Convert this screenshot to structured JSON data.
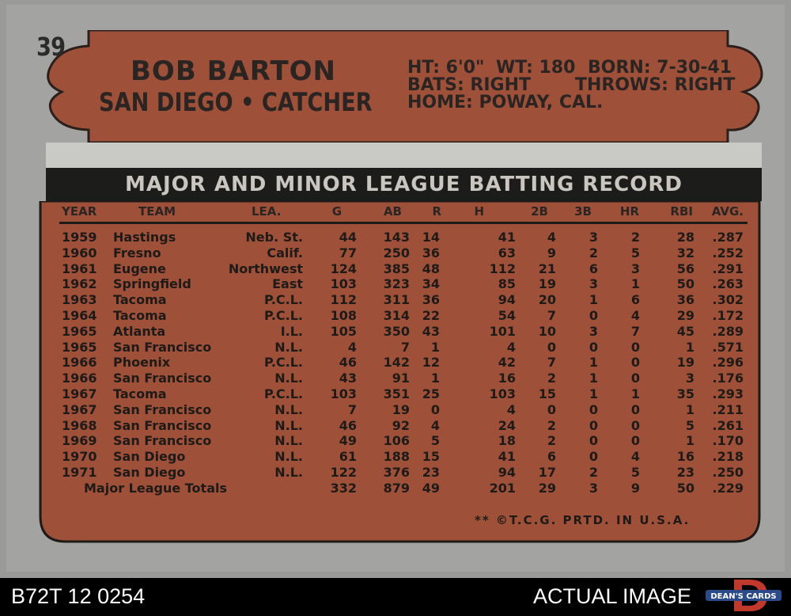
{
  "card": {
    "number": "39",
    "name": "BOB BARTON",
    "team_line": "SAN DIEGO • CATCHER",
    "vitals": {
      "ht": "HT: 6'0\"",
      "wt": "WT: 180",
      "born": "BORN: 7-30-41",
      "bats": "BATS: RIGHT",
      "throws": "THROWS: RIGHT",
      "home": "HOME: POWAY, CAL."
    },
    "record_title": "MAJOR AND MINOR LEAGUE BATTING RECORD",
    "columns": [
      "YEAR",
      "TEAM",
      "LEA.",
      "G",
      "AB",
      "R",
      "H",
      "2B",
      "3B",
      "HR",
      "RBI",
      "AVG."
    ],
    "rows": [
      [
        "1959",
        "Hastings",
        "Neb. St.",
        "44",
        "143",
        "14",
        "41",
        "4",
        "3",
        "2",
        "28",
        ".287"
      ],
      [
        "1960",
        "Fresno",
        "Calif.",
        "77",
        "250",
        "36",
        "63",
        "9",
        "2",
        "5",
        "32",
        ".252"
      ],
      [
        "1961",
        "Eugene",
        "Northwest",
        "124",
        "385",
        "48",
        "112",
        "21",
        "6",
        "3",
        "56",
        ".291"
      ],
      [
        "1962",
        "Springfield",
        "East",
        "103",
        "323",
        "34",
        "85",
        "19",
        "3",
        "1",
        "50",
        ".263"
      ],
      [
        "1963",
        "Tacoma",
        "P.C.L.",
        "112",
        "311",
        "36",
        "94",
        "20",
        "1",
        "6",
        "36",
        ".302"
      ],
      [
        "1964",
        "Tacoma",
        "P.C.L.",
        "108",
        "314",
        "22",
        "54",
        "7",
        "0",
        "4",
        "29",
        ".172"
      ],
      [
        "1965",
        "Atlanta",
        "I.L.",
        "105",
        "350",
        "43",
        "101",
        "10",
        "3",
        "7",
        "45",
        ".289"
      ],
      [
        "1965",
        "San Francisco",
        "N.L.",
        "4",
        "7",
        "1",
        "4",
        "0",
        "0",
        "0",
        "1",
        ".571"
      ],
      [
        "1966",
        "Phoenix",
        "P.C.L.",
        "46",
        "142",
        "12",
        "42",
        "7",
        "1",
        "0",
        "19",
        ".296"
      ],
      [
        "1966",
        "San Francisco",
        "N.L.",
        "43",
        "91",
        "1",
        "16",
        "2",
        "1",
        "0",
        "3",
        ".176"
      ],
      [
        "1967",
        "Tacoma",
        "P.C.L.",
        "103",
        "351",
        "25",
        "103",
        "15",
        "1",
        "1",
        "35",
        ".293"
      ],
      [
        "1967",
        "San Francisco",
        "N.L.",
        "7",
        "19",
        "0",
        "4",
        "0",
        "0",
        "0",
        "1",
        ".211"
      ],
      [
        "1968",
        "San Francisco",
        "N.L.",
        "46",
        "92",
        "4",
        "24",
        "2",
        "0",
        "0",
        "5",
        ".261"
      ],
      [
        "1969",
        "San Francisco",
        "N.L.",
        "49",
        "106",
        "5",
        "18",
        "2",
        "0",
        "0",
        "1",
        ".170"
      ],
      [
        "1970",
        "San Diego",
        "N.L.",
        "61",
        "188",
        "15",
        "41",
        "6",
        "0",
        "4",
        "16",
        ".218"
      ],
      [
        "1971",
        "San Diego",
        "N.L.",
        "122",
        "376",
        "23",
        "94",
        "17",
        "2",
        "5",
        "23",
        ".250"
      ]
    ],
    "totals": [
      "Major League Totals",
      "332",
      "879",
      "49",
      "201",
      "29",
      "3",
      "9",
      "50",
      ".229"
    ],
    "footer_note": "** ©T.C.G. PRTD. IN U.S.A."
  },
  "caption_left": "B72T 12 0254",
  "caption_right": "ACTUAL IMAGE",
  "logo_text": "DEAN'S CARDS",
  "colors": {
    "card_gray": "#a3a4a1",
    "brick": "#9e5138",
    "banner": "#1c1c1b",
    "logo_red": "#c0392b",
    "logo_blue": "#2a4a8a"
  }
}
